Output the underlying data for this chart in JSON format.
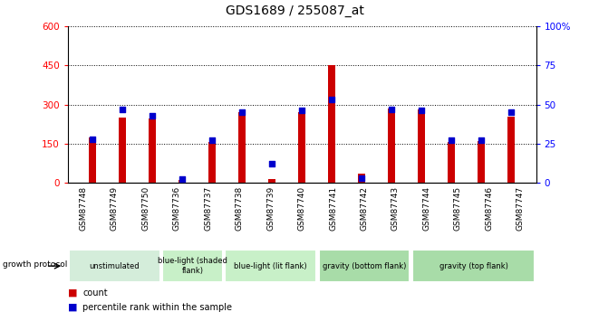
{
  "title": "GDS1689 / 255087_at",
  "samples": [
    "GSM87748",
    "GSM87749",
    "GSM87750",
    "GSM87736",
    "GSM87737",
    "GSM87738",
    "GSM87739",
    "GSM87740",
    "GSM87741",
    "GSM87742",
    "GSM87743",
    "GSM87744",
    "GSM87745",
    "GSM87746",
    "GSM87747"
  ],
  "count_values": [
    175,
    250,
    245,
    10,
    155,
    270,
    15,
    270,
    450,
    35,
    285,
    280,
    155,
    160,
    255
  ],
  "percentile_values": [
    28,
    47,
    43,
    2,
    27,
    45,
    12,
    46,
    53,
    3,
    47,
    46,
    27,
    27,
    45
  ],
  "ylim_left": [
    0,
    600
  ],
  "ylim_right": [
    0,
    100
  ],
  "yticks_left": [
    0,
    150,
    300,
    450,
    600
  ],
  "yticks_right": [
    0,
    25,
    50,
    75,
    100
  ],
  "bar_color": "#cc0000",
  "dot_color": "#0000cc",
  "group_labels": [
    "unstimulated",
    "blue-light (shaded\nflank)",
    "blue-light (lit flank)",
    "gravity (bottom flank)",
    "gravity (top flank)"
  ],
  "group_starts": [
    0,
    3,
    5,
    8,
    11
  ],
  "group_ends": [
    3,
    5,
    8,
    11,
    15
  ],
  "group_colors": [
    "#d4edda",
    "#c8f0c8",
    "#c8f0c8",
    "#a8dca8",
    "#a8dca8"
  ],
  "growth_protocol_label": "growth protocol",
  "legend_count": "count",
  "legend_percentile": "percentile rank within the sample",
  "header_bg": "#c8c8c8",
  "bar_width": 0.25
}
